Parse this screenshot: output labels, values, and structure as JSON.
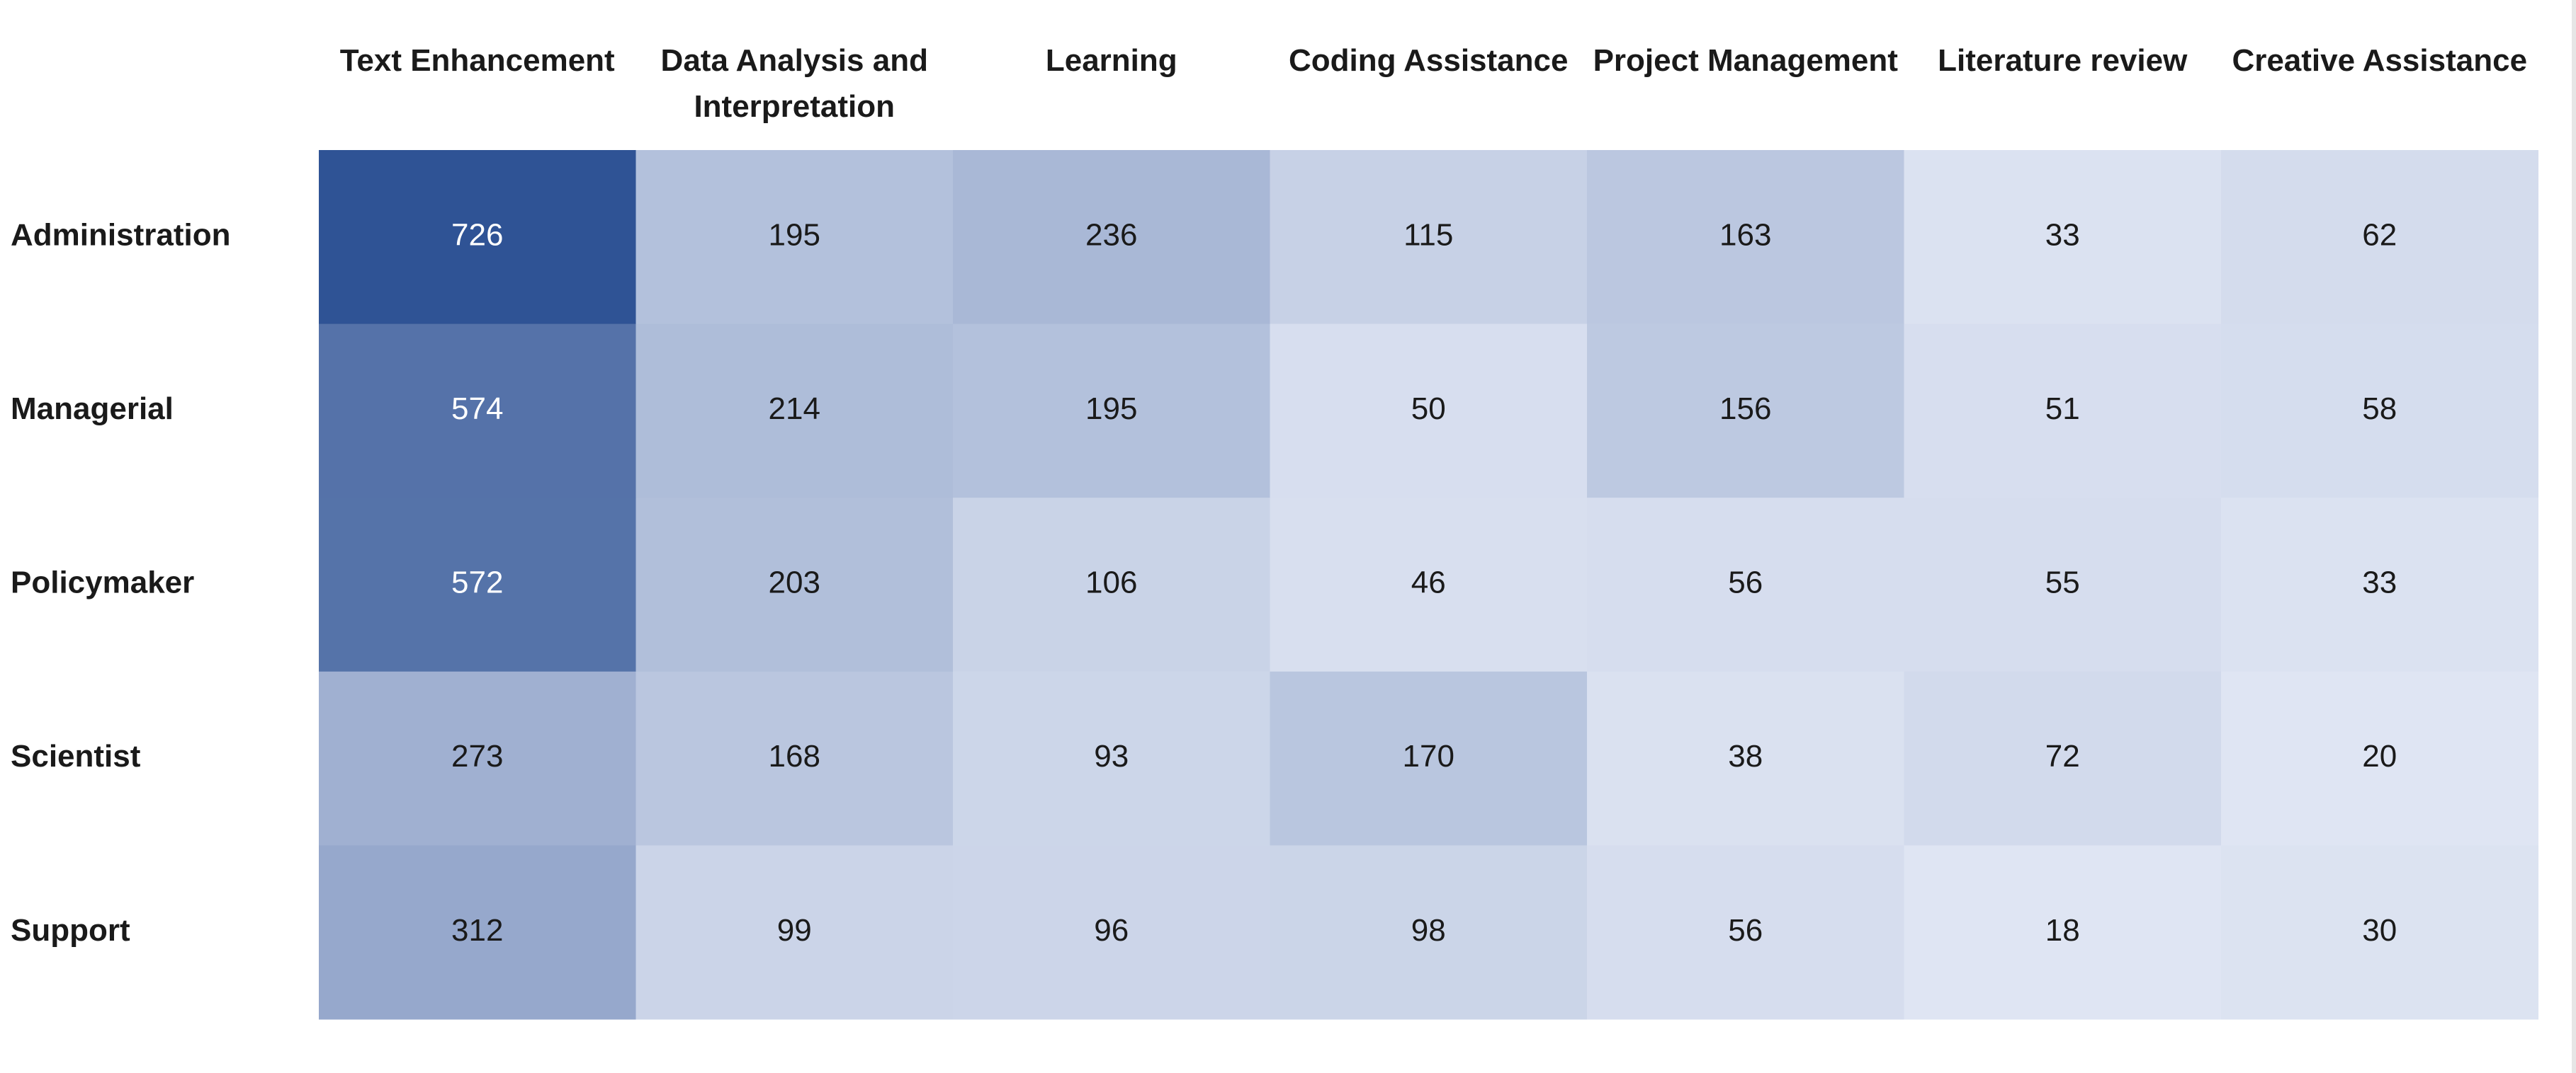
{
  "chart_data": {
    "type": "heatmap",
    "title": "",
    "xlabel": "",
    "ylabel": "",
    "columns": [
      [
        "Text Enhancement"
      ],
      [
        "Data Analysis and",
        "Interpretation"
      ],
      [
        "Learning"
      ],
      [
        "Coding Assistance"
      ],
      [
        "Project Management"
      ],
      [
        "Literature review"
      ],
      [
        "Creative Assistance"
      ]
    ],
    "rows": [
      "Administration",
      "Managerial",
      "Policymaker",
      "Scientist",
      "Support"
    ],
    "values": [
      [
        726,
        195,
        236,
        115,
        163,
        33,
        62
      ],
      [
        574,
        214,
        195,
        50,
        156,
        51,
        58
      ],
      [
        572,
        203,
        106,
        46,
        56,
        55,
        33
      ],
      [
        273,
        168,
        93,
        170,
        38,
        72,
        20
      ],
      [
        312,
        99,
        96,
        98,
        56,
        18,
        30
      ]
    ],
    "color_scale": {
      "low": "#dfe5f3",
      "high": "#2f5395",
      "min": 18,
      "max": 726
    },
    "value_text_color_dark_bg": "#ffffff",
    "value_text_color_light_bg": "#1a1a1a"
  }
}
